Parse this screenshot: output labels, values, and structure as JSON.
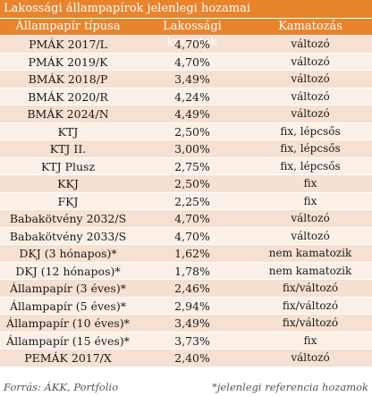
{
  "title": "Lakossági állampapírok jelenlegi hozamai",
  "headers": [
    "Állampapír típusa",
    "Lakossági kamatok",
    "Kamatozás"
  ],
  "rows": [
    {
      "name": "PMÁK 2017/L",
      "rate": "4,70%",
      "type": "változó"
    },
    {
      "name": "PMÁK 2019/K",
      "rate": "4,70%",
      "type": "változó"
    },
    {
      "name": "BMÁK 2018/P",
      "rate": "3,49%",
      "type": "változó"
    },
    {
      "name": "BMÁK 2020/R",
      "rate": "4,24%",
      "type": "változó"
    },
    {
      "name": "BMÁK 2024/N",
      "rate": "4,49%",
      "type": "változó"
    },
    {
      "name": "KTJ",
      "rate": "2,50%",
      "type": "fix, lépcsős"
    },
    {
      "name": "KTJ II.",
      "rate": "3,00%",
      "type": "fix, lépcsős"
    },
    {
      "name": "KTJ Plusz",
      "rate": "2,75%",
      "type": "fix, lépcsős"
    },
    {
      "name": "KKJ",
      "rate": "2,50%",
      "type": "fix"
    },
    {
      "name": "FKJ",
      "rate": "2,25%",
      "type": "fix"
    },
    {
      "name": "Babakötvény 2032/S",
      "rate": "4,70%",
      "type": "változó"
    },
    {
      "name": "Babakötvény 2033/S",
      "rate": "4,70%",
      "type": "változó"
    },
    {
      "name": "DKJ (3 hónapos)*",
      "rate": "1,62%",
      "type": "nem kamatozik"
    },
    {
      "name": "DKJ (12 hónapos)*",
      "rate": "1,78%",
      "type": "nem kamatozik"
    },
    {
      "name": "Állampapír (3 éves)*",
      "rate": "2,46%",
      "type": "fix/változó"
    },
    {
      "name": "Állampapír (5 éves)*",
      "rate": "2,94%",
      "type": "fix/változó"
    },
    {
      "name": "Állampapír (10 éves)*",
      "rate": "3,49%",
      "type": "fix/változó"
    },
    {
      "name": "Állampapír (15 éves)*",
      "rate": "3,73%",
      "type": "fix"
    },
    {
      "name": "PEMÁK 2017/X",
      "rate": "2,40%",
      "type": "változó"
    }
  ],
  "footer": {
    "source": "Forrás: ÁKK, Portfolio",
    "note": "*jelenlegi referencia hozamok"
  },
  "colors": {
    "header": "#E8842E",
    "row_odd": "#F6E0D1",
    "row_even": "#FBF0E8"
  }
}
